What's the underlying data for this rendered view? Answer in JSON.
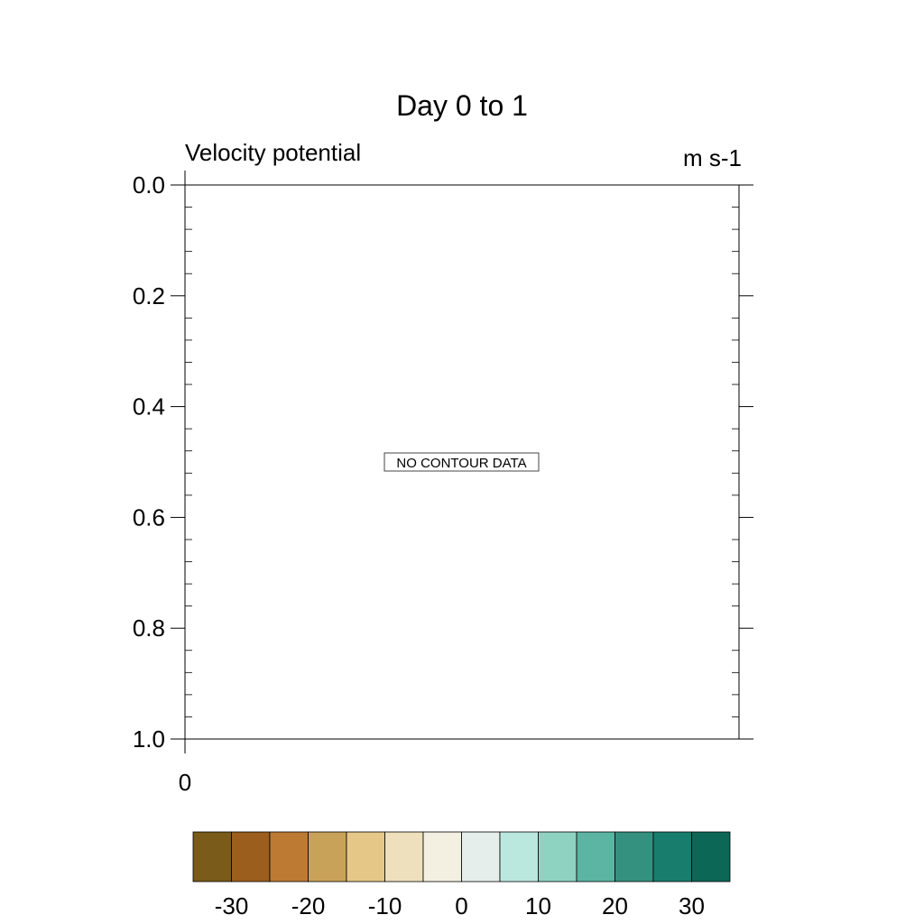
{
  "chart_data": {
    "type": "heatmap",
    "title": "Day 0 to 1",
    "left_subtitle": "Velocity potential",
    "right_subtitle": "m s-1",
    "yticks": [
      "0.0",
      "0.2",
      "0.4",
      "0.6",
      "0.8",
      "1.0"
    ],
    "ytick_values": [
      0.0,
      0.2,
      0.4,
      0.6,
      0.8,
      1.0
    ],
    "ylim": [
      0.0,
      1.0
    ],
    "y_minor_per_major": 4,
    "xticks": [
      "0"
    ],
    "xtick_values": [
      0
    ],
    "xlim": [
      0,
      1
    ],
    "message": "NO CONTOUR DATA",
    "colorbar": {
      "colors": [
        "#7a5b19",
        "#9c5e1c",
        "#bc7a32",
        "#c9a25a",
        "#e5c888",
        "#eee0bc",
        "#f3f0e1",
        "#e6eeeb",
        "#bae8df",
        "#8ed2c2",
        "#5bb5a2",
        "#35917f",
        "#197d6e",
        "#0c6757"
      ],
      "labels": [
        "-30",
        "-20",
        "-10",
        "0",
        "10",
        "20",
        "30"
      ],
      "label_boundaries": [
        1,
        3,
        5,
        7,
        9,
        11,
        13
      ]
    }
  }
}
